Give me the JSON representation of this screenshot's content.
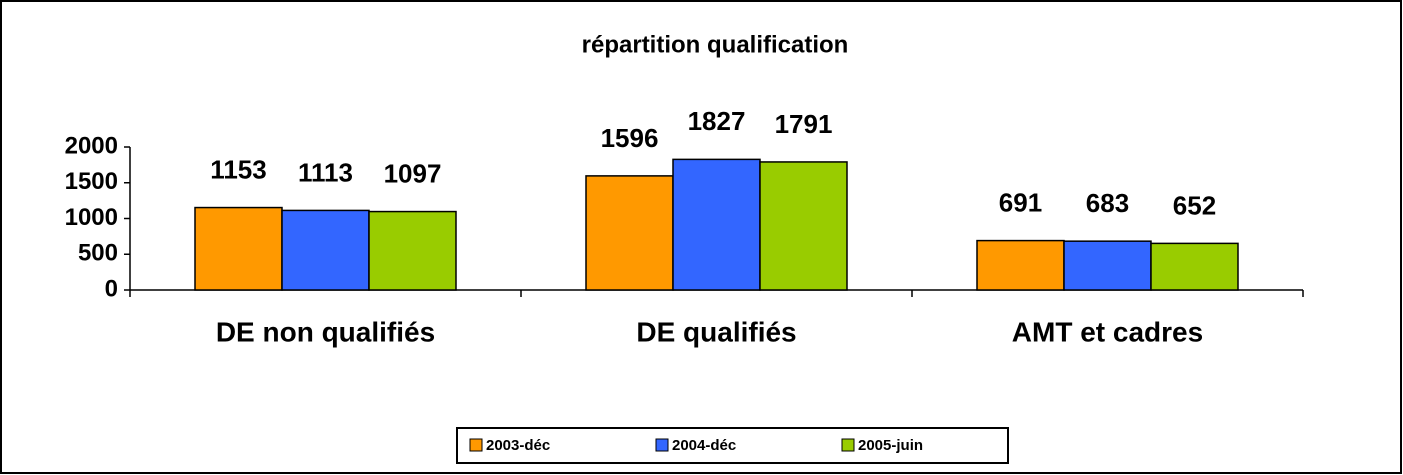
{
  "chart_data": {
    "type": "bar",
    "title": "répartition qualification",
    "categories": [
      "DE non qualifiés",
      "DE qualifiés",
      "AMT et cadres"
    ],
    "series": [
      {
        "name": "2003-déc",
        "color": "#ff9900",
        "values": [
          1153,
          1596,
          691
        ]
      },
      {
        "name": "2004-déc",
        "color": "#3366ff",
        "values": [
          1113,
          1827,
          683
        ]
      },
      {
        "name": "2005-juin",
        "color": "#99cc00",
        "values": [
          1097,
          1791,
          652
        ]
      }
    ],
    "ylim": [
      0,
      2000
    ],
    "yticks": [
      0,
      500,
      1000,
      1500,
      2000
    ],
    "grid": false,
    "legend": "bottom"
  }
}
